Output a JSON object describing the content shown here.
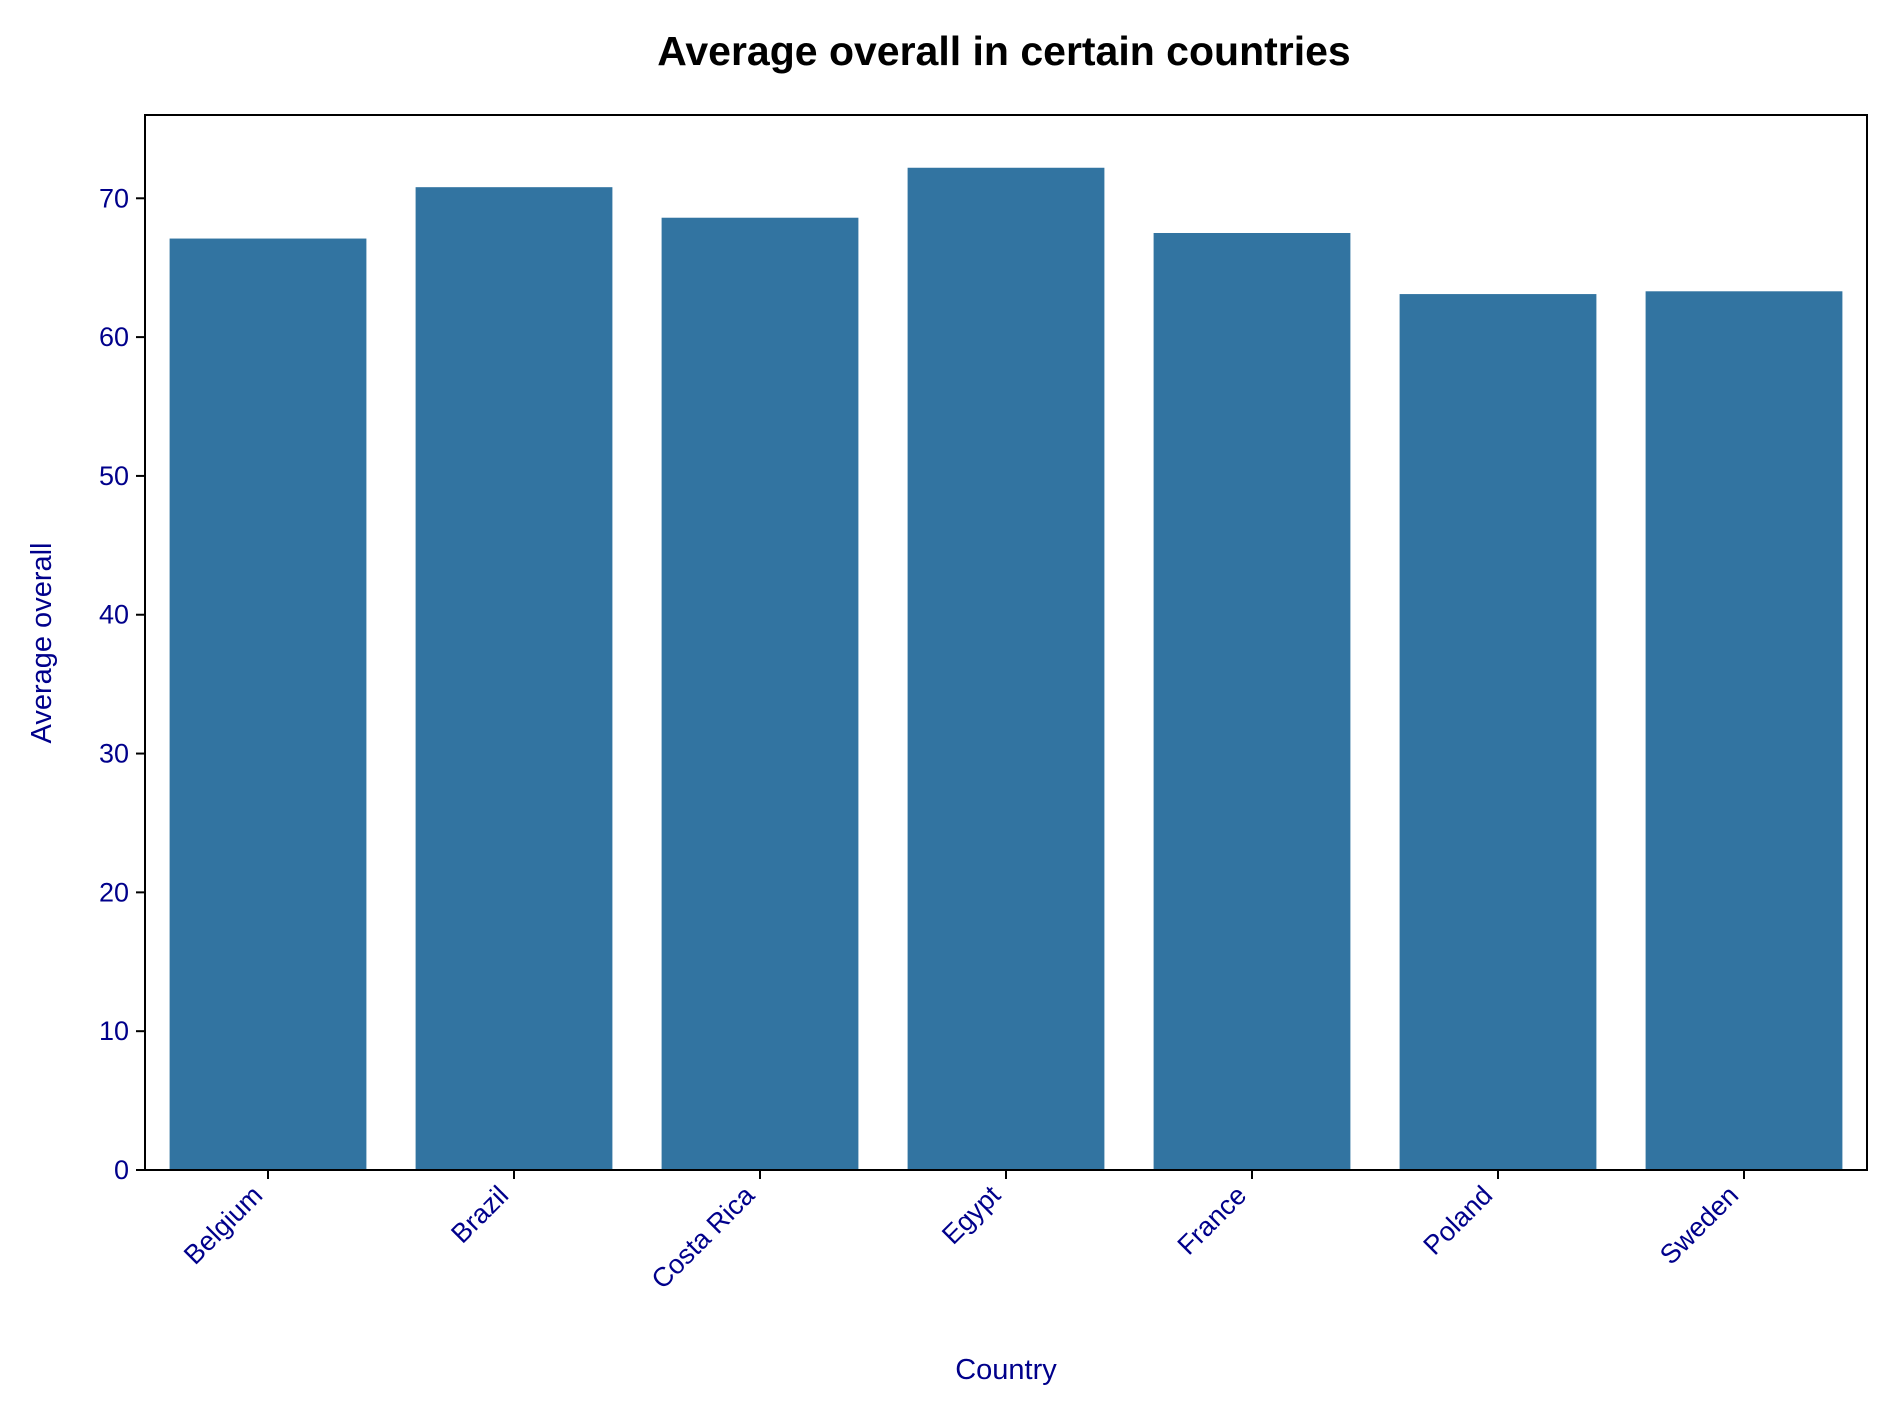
{
  "chart_data": {
    "type": "bar",
    "title": "Average overall in certain countries",
    "xlabel": "Country",
    "ylabel": "Average overall",
    "categories": [
      "Belgium",
      "Brazil",
      "Costa Rica",
      "Egypt",
      "France",
      "Poland",
      "Sweden"
    ],
    "values": [
      67.1,
      70.8,
      68.6,
      72.2,
      67.5,
      63.1,
      63.3
    ],
    "ylim": [
      0,
      76
    ],
    "yticks": [
      0,
      10,
      20,
      30,
      40,
      50,
      60,
      70
    ],
    "grid": false,
    "legend": "none",
    "colors": {
      "bar": "#3274a1",
      "axis_text": "#00008b",
      "title": "#000000",
      "axis_line": "#000000"
    }
  }
}
